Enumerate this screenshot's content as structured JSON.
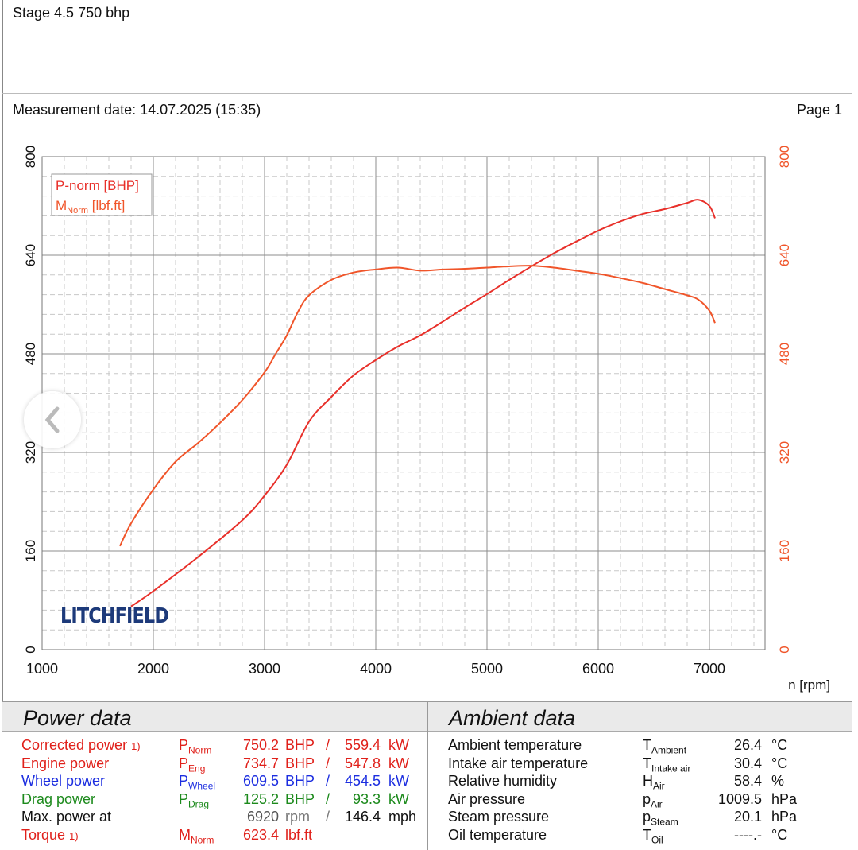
{
  "header": {
    "title": "Stage 4.5 750 bhp",
    "measurement": "Measurement date: 14.07.2025 (15:35)",
    "page": "Page 1"
  },
  "logo_text": "LITCHFIELD",
  "chart_data": {
    "type": "line",
    "xlabel": "n [rpm]",
    "xlim": [
      1000,
      7500
    ],
    "ylim": [
      0,
      800
    ],
    "x_ticks": [
      "1000",
      "2000",
      "3000",
      "4000",
      "5000",
      "6000",
      "7000"
    ],
    "y_ticks_left": [
      "0",
      "160",
      "320",
      "480",
      "640",
      "800"
    ],
    "y_ticks_right": [
      "0",
      "160",
      "320",
      "480",
      "640",
      "800"
    ],
    "legend": [
      "P-norm [BHP]",
      "M_Norm [lbf.ft]"
    ],
    "legend_position": "top-left",
    "grid": true,
    "series": [
      {
        "name": "P-norm [BHP]",
        "color": "#e8302a",
        "x": [
          1800,
          2000,
          2400,
          2800,
          3000,
          3200,
          3400,
          3600,
          3800,
          4000,
          4200,
          4400,
          4600,
          4800,
          5000,
          5200,
          5400,
          5600,
          5800,
          6000,
          6200,
          6400,
          6600,
          6800,
          6900,
          7000,
          7050
        ],
        "y": [
          70,
          95,
          150,
          210,
          250,
          300,
          370,
          410,
          445,
          470,
          492,
          510,
          532,
          555,
          577,
          600,
          622,
          643,
          662,
          680,
          695,
          707,
          715,
          725,
          730,
          720,
          700
        ]
      },
      {
        "name": "M_Norm [lbf.ft]",
        "color": "#f0552a",
        "x": [
          1700,
          1800,
          2000,
          2200,
          2400,
          2600,
          2800,
          3000,
          3100,
          3200,
          3300,
          3400,
          3600,
          3800,
          4000,
          4200,
          4400,
          4600,
          4800,
          5000,
          5200,
          5400,
          5600,
          5800,
          6000,
          6200,
          6400,
          6600,
          6800,
          6900,
          7000,
          7050
        ],
        "y": [
          168,
          205,
          260,
          305,
          335,
          368,
          405,
          450,
          480,
          510,
          548,
          575,
          600,
          612,
          617,
          620,
          615,
          617,
          618,
          620,
          622,
          623,
          620,
          615,
          610,
          603,
          595,
          585,
          575,
          568,
          550,
          530
        ]
      }
    ]
  },
  "power": {
    "title": "Power data",
    "rows": [
      {
        "label": "Corrected power",
        "note": "1)",
        "sym": "P",
        "sub": "Norm",
        "v1": "750.2",
        "u1": "BHP",
        "sep": "/",
        "v2": "559.4",
        "u2": "kW",
        "color": "red"
      },
      {
        "label": "Engine power",
        "note": "",
        "sym": "P",
        "sub": "Eng",
        "v1": "734.7",
        "u1": "BHP",
        "sep": "/",
        "v2": "547.8",
        "u2": "kW",
        "color": "red"
      },
      {
        "label": "Wheel power",
        "note": "",
        "sym": "P",
        "sub": "Wheel",
        "v1": "609.5",
        "u1": "BHP",
        "sep": "/",
        "v2": "454.5",
        "u2": "kW",
        "color": "blue"
      },
      {
        "label": "Drag power",
        "note": "",
        "sym": "P",
        "sub": "Drag",
        "v1": "125.2",
        "u1": "BHP",
        "sep": "/",
        "v2": "93.3",
        "u2": "kW",
        "color": "green"
      },
      {
        "label": "Max. power at",
        "note": "",
        "sym": "",
        "sub": "",
        "v1": "6920",
        "u1": "rpm",
        "sep": "/",
        "v2": "146.4",
        "u2": "mph",
        "color": "grey"
      },
      {
        "label": "Torque",
        "note": "1)",
        "sym": "M",
        "sub": "Norm",
        "v1": "623.4",
        "u1": "lbf.ft",
        "sep": "",
        "v2": "",
        "u2": "",
        "color": "red"
      }
    ]
  },
  "ambient": {
    "title": "Ambient data",
    "rows": [
      {
        "label": "Ambient temperature",
        "sym": "T",
        "sub": "Ambient",
        "value": "26.4",
        "unit": "°C"
      },
      {
        "label": "Intake air temperature",
        "sym": "T",
        "sub": "Intake air",
        "value": "30.4",
        "unit": "°C"
      },
      {
        "label": "Relative humidity",
        "sym": "H",
        "sub": "Air",
        "value": "58.4",
        "unit": "%"
      },
      {
        "label": "Air pressure",
        "sym": "p",
        "sub": "Air",
        "value": "1009.5",
        "unit": "hPa"
      },
      {
        "label": "Steam pressure",
        "sym": "p",
        "sub": "Steam",
        "value": "20.1",
        "unit": "hPa"
      },
      {
        "label": "Oil temperature",
        "sym": "T",
        "sub": "Oil",
        "value": "----.-",
        "unit": "°C"
      }
    ]
  }
}
